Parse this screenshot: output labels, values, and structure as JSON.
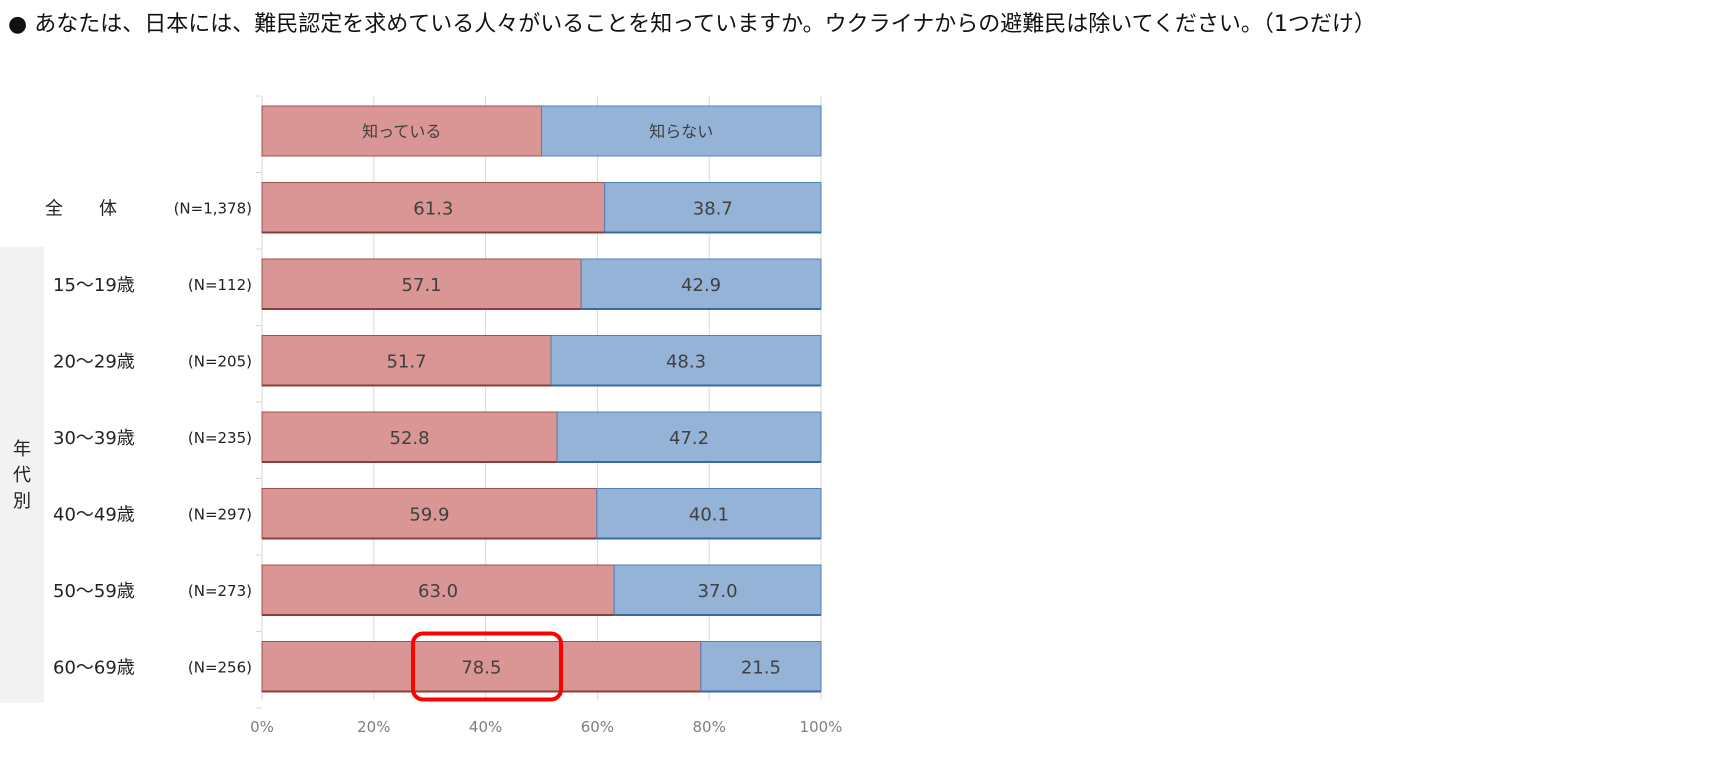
{
  "question": "あなたは、日本には、難民認定を求めている人々がいることを知っていますか。ウクライナからの避難民は除いてください。（1つだけ）",
  "bullet": "●",
  "group_label": "年代別",
  "chart_data": {
    "type": "bar",
    "orientation": "horizontal",
    "stacked": true,
    "percent": true,
    "legend_row": [
      "知っている",
      "知らない"
    ],
    "categories": [
      "全　　体",
      "15～19歳",
      "20～29歳",
      "30～39歳",
      "40～49歳",
      "50～59歳",
      "60～69歳"
    ],
    "n_labels": [
      "(N=1,378)",
      "(N=112)",
      "(N=205)",
      "(N=235)",
      "(N=297)",
      "(N=273)",
      "(N=256)"
    ],
    "series": [
      {
        "name": "知っている",
        "values": [
          61.3,
          57.1,
          51.7,
          52.8,
          59.9,
          63.0,
          78.5
        ],
        "color": "#d99694"
      },
      {
        "name": "知らない",
        "values": [
          38.7,
          42.9,
          48.3,
          47.2,
          40.1,
          37.0,
          21.5
        ],
        "color": "#95b3d7"
      }
    ],
    "value_labels": [
      [
        "61.3",
        "57.1",
        "51.7",
        "52.8",
        "59.9",
        "63.0",
        "78.5"
      ],
      [
        "38.7",
        "42.9",
        "48.3",
        "47.2",
        "40.1",
        "37.0",
        "21.5"
      ]
    ],
    "xlim": [
      0,
      100
    ],
    "xticks": [
      "0%",
      "20%",
      "40%",
      "60%",
      "80%",
      "100%"
    ],
    "highlight": {
      "category": "60～69歳",
      "series": "知っている",
      "color": "#ff0000"
    },
    "grid": true
  }
}
